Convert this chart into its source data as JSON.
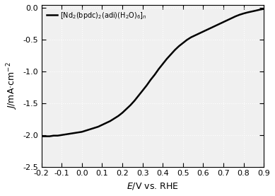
{
  "title": "",
  "xlabel": "$E$/V vs. RHE",
  "ylabel": "$J$/mA·cm$^{-2}$",
  "xlim": [
    -0.2,
    0.9
  ],
  "ylim": [
    -2.5,
    0.05
  ],
  "xticks": [
    -0.2,
    -0.1,
    0.0,
    0.1,
    0.2,
    0.3,
    0.4,
    0.5,
    0.6,
    0.7,
    0.8,
    0.9
  ],
  "yticks": [
    0.0,
    -0.5,
    -1.0,
    -1.5,
    -2.0,
    -2.5
  ],
  "line_color": "#000000",
  "line_width": 1.8,
  "legend_label": "[Nd$_2$(bpdc)$_2$(adi)(H$_2$O)$_6$]$_n$",
  "background_color": "#ffffff",
  "x_data": [
    -0.2,
    -0.18,
    -0.16,
    -0.14,
    -0.12,
    -0.1,
    -0.08,
    -0.06,
    -0.04,
    -0.02,
    0.0,
    0.02,
    0.04,
    0.06,
    0.08,
    0.1,
    0.12,
    0.14,
    0.16,
    0.18,
    0.2,
    0.22,
    0.24,
    0.26,
    0.28,
    0.3,
    0.32,
    0.34,
    0.36,
    0.38,
    0.4,
    0.42,
    0.44,
    0.46,
    0.48,
    0.5,
    0.52,
    0.54,
    0.56,
    0.58,
    0.6,
    0.62,
    0.64,
    0.66,
    0.68,
    0.7,
    0.72,
    0.74,
    0.76,
    0.78,
    0.8,
    0.82,
    0.84,
    0.86,
    0.88,
    0.9
  ],
  "y_data": [
    -2.02,
    -2.02,
    -2.02,
    -2.01,
    -2.01,
    -2.0,
    -1.99,
    -1.98,
    -1.97,
    -1.96,
    -1.95,
    -1.93,
    -1.91,
    -1.89,
    -1.87,
    -1.84,
    -1.81,
    -1.78,
    -1.74,
    -1.7,
    -1.65,
    -1.59,
    -1.53,
    -1.46,
    -1.38,
    -1.3,
    -1.22,
    -1.13,
    -1.05,
    -0.96,
    -0.88,
    -0.8,
    -0.73,
    -0.66,
    -0.6,
    -0.55,
    -0.5,
    -0.46,
    -0.43,
    -0.4,
    -0.37,
    -0.34,
    -0.31,
    -0.28,
    -0.25,
    -0.22,
    -0.19,
    -0.16,
    -0.13,
    -0.105,
    -0.085,
    -0.068,
    -0.054,
    -0.04,
    -0.025,
    -0.012
  ]
}
